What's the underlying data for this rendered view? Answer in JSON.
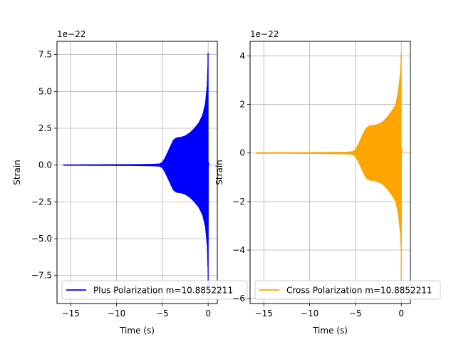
{
  "chart_data": [
    {
      "type": "line",
      "xlabel": "Time (s)",
      "ylabel": "Strain",
      "y_multiplier": "1e−22",
      "xlim": [
        -16.5,
        1.0
      ],
      "ylim": [
        -9.4,
        8.4
      ],
      "xticks": [
        -15,
        -10,
        -5,
        0
      ],
      "xtick_labels": [
        "−15",
        "−10",
        "−5",
        "0"
      ],
      "yticks": [
        -7.5,
        -5.0,
        -2.5,
        0.0,
        2.5,
        5.0,
        7.5
      ],
      "ytick_labels": [
        "−7.5",
        "−5.0",
        "−2.5",
        "0.0",
        "2.5",
        "5.0",
        "7.5"
      ],
      "grid": true,
      "legend_position": "lower-left",
      "color": "#0000ff",
      "series": [
        {
          "name": "Plus Polarization m=10.8852211",
          "color": "#0000ff",
          "envelope_x": [
            -15.8,
            -12.0,
            -8.0,
            -6.0,
            -5.3,
            -5.0,
            -4.7,
            -4.4,
            -4.1,
            -3.8,
            -3.5,
            -3.2,
            -3.0,
            -2.5,
            -2.0,
            -1.5,
            -1.0,
            -0.6,
            -0.3,
            -0.1,
            0.0,
            0.1
          ],
          "envelope_amp": [
            0.04,
            0.05,
            0.06,
            0.08,
            0.1,
            0.2,
            0.5,
            0.9,
            1.3,
            1.7,
            1.85,
            1.9,
            1.9,
            2.0,
            2.2,
            2.5,
            2.9,
            3.4,
            4.2,
            5.5,
            7.6,
            0.05
          ],
          "min_value": -8.4,
          "max_value": 7.6
        }
      ]
    },
    {
      "type": "line",
      "xlabel": "Time (s)",
      "ylabel": "Strain",
      "y_multiplier": "1e−22",
      "xlim": [
        -16.5,
        1.0
      ],
      "ylim": [
        -6.2,
        4.6
      ],
      "xticks": [
        -15,
        -10,
        -5,
        0
      ],
      "xtick_labels": [
        "−15",
        "−10",
        "−5",
        "0"
      ],
      "yticks": [
        -6,
        -4,
        -2,
        0,
        2,
        4
      ],
      "ytick_labels": [
        "−6",
        "−4",
        "−2",
        "0",
        "2",
        "4"
      ],
      "grid": true,
      "legend_position": "lower-left",
      "color": "#ffa500",
      "series": [
        {
          "name": "Cross Polarization m=10.8852211",
          "color": "#ffa500",
          "envelope_x": [
            -15.8,
            -12.0,
            -8.0,
            -6.0,
            -5.3,
            -5.0,
            -4.7,
            -4.4,
            -4.1,
            -3.8,
            -3.5,
            -3.2,
            -3.0,
            -2.5,
            -2.0,
            -1.5,
            -1.0,
            -0.6,
            -0.3,
            -0.1,
            0.0,
            0.1
          ],
          "envelope_amp": [
            0.03,
            0.03,
            0.04,
            0.05,
            0.07,
            0.15,
            0.35,
            0.6,
            0.85,
            1.05,
            1.12,
            1.15,
            1.15,
            1.2,
            1.3,
            1.5,
            1.75,
            2.0,
            2.6,
            3.3,
            4.1,
            0.02
          ],
          "min_value": -6.0,
          "max_value": 4.1
        }
      ]
    }
  ]
}
